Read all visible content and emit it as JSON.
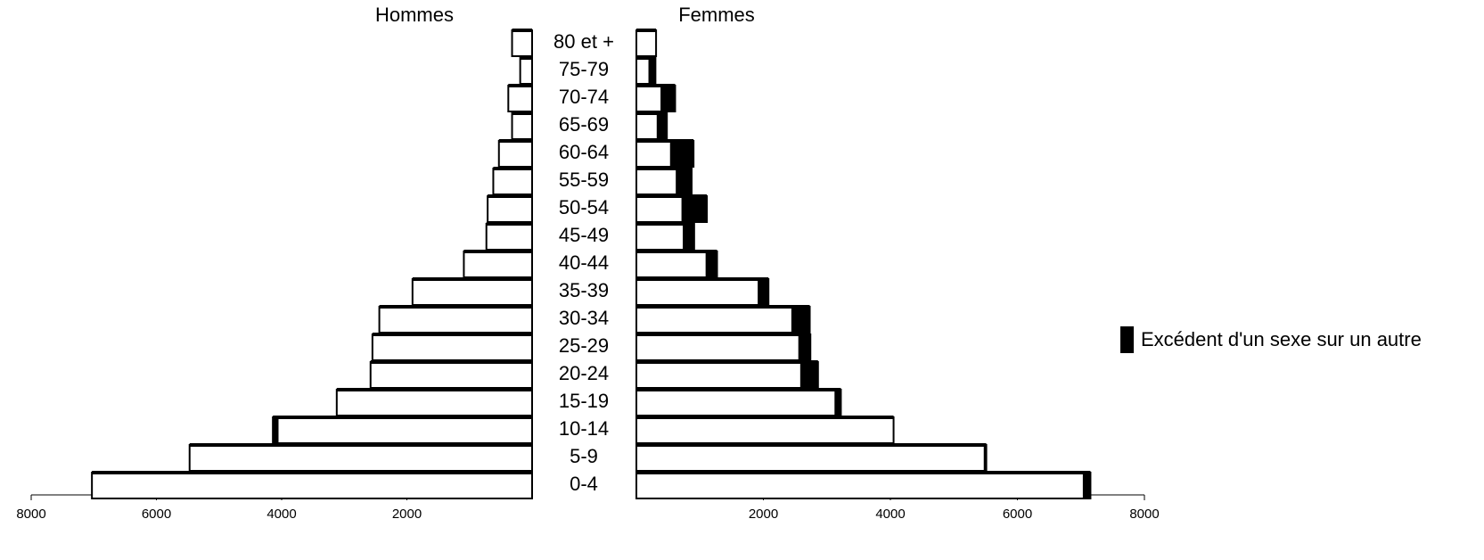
{
  "chart_data": {
    "type": "pyramid",
    "categories": [
      "0-4",
      "5-9",
      "10-14",
      "15-19",
      "20-24",
      "25-29",
      "30-34",
      "35-39",
      "40-44",
      "45-49",
      "50-54",
      "55-59",
      "60-64",
      "65-69",
      "70-74",
      "75-79",
      "80 et +"
    ],
    "series": [
      {
        "name": "Hommes",
        "color": "#ffffff",
        "values": [
          7030,
          5470,
          4140,
          3120,
          2580,
          2550,
          2440,
          1910,
          1090,
          730,
          710,
          620,
          530,
          320,
          380,
          190,
          320
        ]
      },
      {
        "name": "Femmes",
        "color": "#ffffff",
        "values": [
          7150,
          5510,
          4050,
          3220,
          2860,
          2740,
          2730,
          2080,
          1270,
          910,
          1110,
          870,
          900,
          480,
          610,
          300,
          310
        ]
      }
    ],
    "excess_label": "Excédent d'un sexe sur un autre",
    "excess_color": "#000000",
    "xlim": [
      0,
      8000
    ],
    "xticks": [
      2000,
      4000,
      6000,
      8000
    ]
  }
}
